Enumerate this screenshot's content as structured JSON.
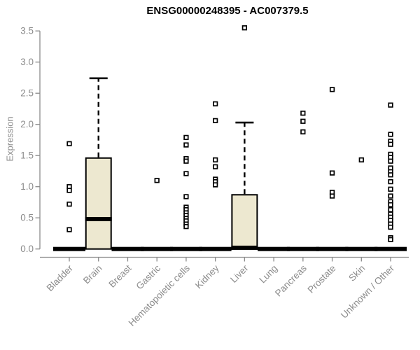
{
  "figure": {
    "title": "ENSG00000248395 - AC007379.5"
  },
  "chart_data": {
    "type": "boxplot",
    "title": "ENSG00000248395 - AC007379.5",
    "xlabel": "",
    "ylabel": "Expression",
    "ylim": [
      0,
      3.5
    ],
    "yticks": [
      0.0,
      0.5,
      1.0,
      1.5,
      2.0,
      2.5,
      3.0,
      3.5
    ],
    "grid": false,
    "legend": "none",
    "categories": [
      "Bladder",
      "Brain",
      "Breast",
      "Gastric",
      "Hematopoietic cells",
      "Kidney",
      "Liver",
      "Lung",
      "Pancreas",
      "Prostate",
      "Skin",
      "Unknown / Other"
    ],
    "boxes": [
      {
        "category": "Bladder",
        "collapsed": true,
        "q1": 0,
        "median": 0,
        "q3": 0,
        "whisker_low": 0,
        "whisker_high": 0,
        "outliers": [
          1.69,
          1.0,
          0.94,
          0.72,
          0.31
        ]
      },
      {
        "category": "Brain",
        "collapsed": false,
        "q1": 0,
        "median": 0.48,
        "q3": 1.46,
        "whisker_low": 0,
        "whisker_high": 2.74,
        "outliers": []
      },
      {
        "category": "Breast",
        "collapsed": true,
        "q1": 0,
        "median": 0,
        "q3": 0,
        "whisker_low": 0,
        "whisker_high": 0,
        "outliers": []
      },
      {
        "category": "Gastric",
        "collapsed": true,
        "q1": 0,
        "median": 0,
        "q3": 0,
        "whisker_low": 0,
        "whisker_high": 0,
        "outliers": [
          1.1
        ]
      },
      {
        "category": "Hematopoietic cells",
        "collapsed": true,
        "q1": 0,
        "median": 0,
        "q3": 0,
        "whisker_low": 0,
        "whisker_high": 0,
        "outliers": [
          1.79,
          1.67,
          1.45,
          1.41,
          1.21,
          0.84,
          0.67,
          0.63,
          0.58,
          0.54,
          0.49,
          0.45,
          0.4,
          0.36
        ]
      },
      {
        "category": "Kidney",
        "collapsed": true,
        "q1": 0,
        "median": 0,
        "q3": 0,
        "whisker_low": 0,
        "whisker_high": 0,
        "outliers": [
          2.33,
          2.06,
          1.43,
          1.32,
          1.12,
          1.08,
          1.03
        ]
      },
      {
        "category": "Liver",
        "collapsed": false,
        "q1": 0,
        "median": 0.02,
        "q3": 0.87,
        "whisker_low": 0,
        "whisker_high": 2.03,
        "outliers": [
          3.55
        ]
      },
      {
        "category": "Lung",
        "collapsed": true,
        "q1": 0,
        "median": 0,
        "q3": 0,
        "whisker_low": 0,
        "whisker_high": 0,
        "outliers": []
      },
      {
        "category": "Pancreas",
        "collapsed": true,
        "q1": 0,
        "median": 0,
        "q3": 0,
        "whisker_low": 0,
        "whisker_high": 0,
        "outliers": [
          2.18,
          2.05,
          1.88
        ]
      },
      {
        "category": "Prostate",
        "collapsed": true,
        "q1": 0,
        "median": 0,
        "q3": 0,
        "whisker_low": 0,
        "whisker_high": 0,
        "outliers": [
          2.56,
          1.22,
          0.91,
          0.85
        ]
      },
      {
        "category": "Skin",
        "collapsed": true,
        "q1": 0,
        "median": 0,
        "q3": 0,
        "whisker_low": 0,
        "whisker_high": 0,
        "outliers": [
          1.43
        ]
      },
      {
        "category": "Unknown / Other",
        "collapsed": true,
        "q1": 0,
        "median": 0,
        "q3": 0,
        "whisker_low": 0,
        "whisker_high": 0,
        "outliers": [
          2.31,
          1.84,
          1.73,
          1.68,
          1.52,
          1.47,
          1.41,
          1.3,
          1.24,
          1.19,
          1.08,
          0.96,
          0.85,
          0.76,
          0.71,
          0.63,
          0.56,
          0.51,
          0.46,
          0.4,
          0.35,
          0.18,
          0.15
        ]
      }
    ],
    "colors": {
      "box_fill": "#ede8d0",
      "box_stroke": "#000000",
      "median": "#000000",
      "whisker": "#000000",
      "outlier_stroke": "#000000",
      "outlier_fill": "#ffffff",
      "axis": "#8b8b8b",
      "tick_label": "#8b8b8b",
      "title": "#000000",
      "background": "#ffffff"
    }
  }
}
